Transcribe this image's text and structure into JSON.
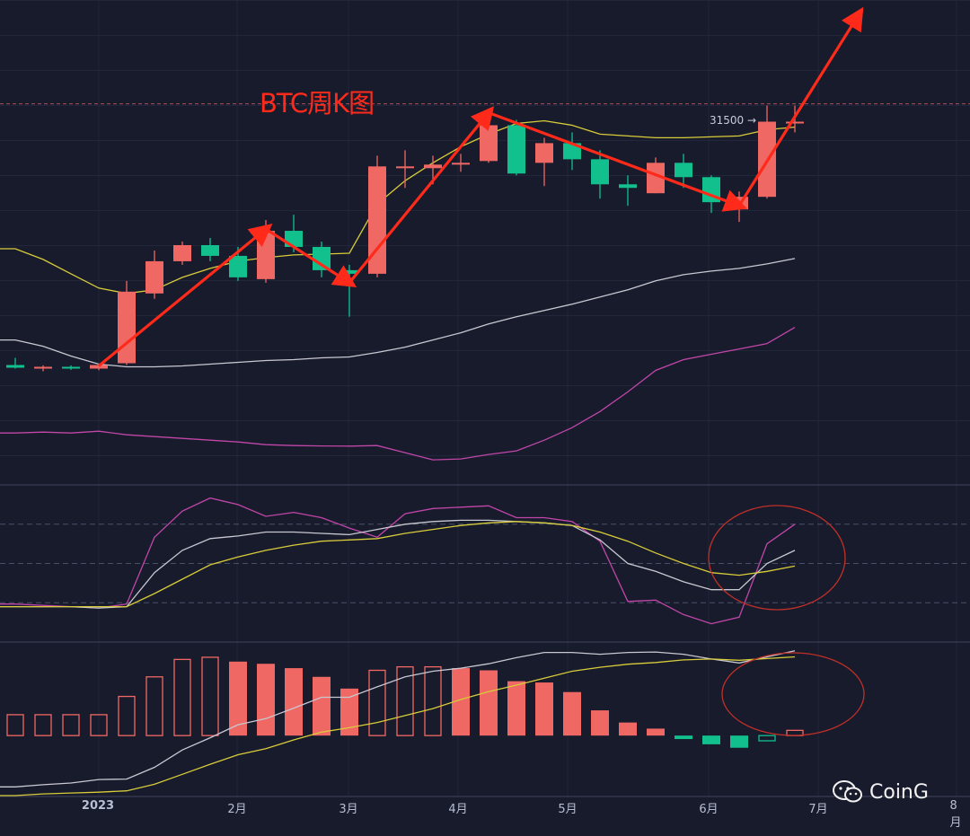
{
  "title": "BTC周K图",
  "watermark": "CoinG",
  "price_label": "31500 →",
  "colors": {
    "up": "#f06864",
    "down": "#12c08e",
    "ma": "#c8c8d2",
    "upper": "#d8cc3a",
    "lower": "#c046a8",
    "arrow": "#ff2a1a",
    "signal": "#d8cc3a",
    "circle": "#c03028"
  },
  "chart_data": [
    {
      "type": "candlestick",
      "title": "BTC周K图",
      "price_line": 31500,
      "x_labels": [
        "2023",
        "2月",
        "3月",
        "4月",
        "5月",
        "6月",
        "7月",
        "8月"
      ],
      "candles": [
        {
          "o": 16900,
          "h": 17300,
          "l": 16700,
          "c": 16750
        },
        {
          "o": 16740,
          "h": 16880,
          "l": 16550,
          "c": 16800
        },
        {
          "o": 16800,
          "h": 16880,
          "l": 16630,
          "c": 16700
        },
        {
          "o": 16700,
          "h": 16980,
          "l": 16610,
          "c": 16900
        },
        {
          "o": 17000,
          "h": 21600,
          "l": 16900,
          "c": 21000
        },
        {
          "o": 20900,
          "h": 23300,
          "l": 20600,
          "c": 22700
        },
        {
          "o": 22700,
          "h": 23800,
          "l": 22500,
          "c": 23600
        },
        {
          "o": 23600,
          "h": 24000,
          "l": 22700,
          "c": 23000
        },
        {
          "o": 23000,
          "h": 23500,
          "l": 21600,
          "c": 21800
        },
        {
          "o": 21700,
          "h": 25000,
          "l": 21500,
          "c": 24400
        },
        {
          "o": 24400,
          "h": 25300,
          "l": 23200,
          "c": 23500
        },
        {
          "o": 23500,
          "h": 23800,
          "l": 21800,
          "c": 22200
        },
        {
          "o": 22200,
          "h": 22500,
          "l": 19600,
          "c": 22000
        },
        {
          "o": 22000,
          "h": 28600,
          "l": 21800,
          "c": 28000
        },
        {
          "o": 28000,
          "h": 28900,
          "l": 26800,
          "c": 28000
        },
        {
          "o": 27900,
          "h": 28600,
          "l": 27000,
          "c": 28100
        },
        {
          "o": 28100,
          "h": 28700,
          "l": 27700,
          "c": 28200
        },
        {
          "o": 28300,
          "h": 30900,
          "l": 28200,
          "c": 30300
        },
        {
          "o": 30300,
          "h": 30600,
          "l": 27500,
          "c": 27600
        },
        {
          "o": 28200,
          "h": 29600,
          "l": 26900,
          "c": 29300
        },
        {
          "o": 29300,
          "h": 29900,
          "l": 27800,
          "c": 28400
        },
        {
          "o": 28400,
          "h": 28900,
          "l": 26200,
          "c": 27000
        },
        {
          "o": 27000,
          "h": 27500,
          "l": 25800,
          "c": 26800
        },
        {
          "o": 26500,
          "h": 28500,
          "l": 26500,
          "c": 28200
        },
        {
          "o": 28200,
          "h": 28700,
          "l": 26800,
          "c": 27400
        },
        {
          "o": 27400,
          "h": 27500,
          "l": 25400,
          "c": 26000
        },
        {
          "o": 25600,
          "h": 26600,
          "l": 24900,
          "c": 26300
        },
        {
          "o": 26300,
          "h": 31400,
          "l": 26200,
          "c": 30500
        },
        {
          "o": 30500,
          "h": 31400,
          "l": 29900,
          "c": 30500
        }
      ],
      "series": [
        {
          "name": "",
          "values": [
            23400,
            22800,
            22000,
            21200,
            20900,
            21100,
            21800,
            22300,
            22700,
            22900,
            23050,
            23100,
            23150,
            25900,
            27200,
            28200,
            29100,
            29800,
            30400,
            30550,
            30300,
            29800,
            29700,
            29600,
            29600,
            29650,
            29700,
            30050,
            30200
          ]
        },
        {
          "name": "",
          "values": [
            18300,
            17950,
            17400,
            16950,
            16800,
            16800,
            16850,
            16950,
            17050,
            17150,
            17200,
            17300,
            17350,
            17600,
            17900,
            18300,
            18700,
            19200,
            19600,
            19950,
            20300,
            20700,
            21100,
            21600,
            21950,
            22150,
            22300,
            22550,
            22850
          ]
        },
        {
          "name": "",
          "values": [
            13100,
            13150,
            13100,
            13200,
            13000,
            12900,
            12800,
            12700,
            12600,
            12450,
            12400,
            12380,
            12370,
            12400,
            12000,
            11600,
            11650,
            11900,
            12100,
            12700,
            13400,
            14300,
            15400,
            16600,
            17200,
            17500,
            17800,
            18100,
            19000
          ]
        }
      ],
      "ylim": [
        10200,
        37300
      ]
    },
    {
      "type": "line",
      "ylim": [
        -10,
        110
      ],
      "levels": [
        80,
        50,
        20
      ],
      "series": [
        {
          "name": "",
          "values": [
            19,
            18,
            17,
            16,
            19,
            70,
            90,
            100,
            95,
            86,
            89,
            85,
            77,
            70,
            88,
            92,
            93,
            94,
            85,
            85,
            82,
            67,
            21,
            22,
            11,
            4,
            9,
            65,
            80
          ]
        },
        {
          "name": "",
          "values": [
            17,
            17,
            17,
            16,
            17,
            43,
            60,
            69,
            71,
            74,
            74,
            73,
            72,
            76,
            80,
            82,
            83,
            83,
            82,
            81,
            79,
            68,
            50,
            44,
            36,
            30,
            30,
            50,
            60
          ]
        },
        {
          "name": "",
          "values": [
            17,
            17,
            17,
            17,
            17,
            27,
            38,
            49,
            55,
            60,
            64,
            67,
            68,
            69,
            73,
            76,
            79,
            81,
            82,
            81,
            79,
            74,
            67,
            58,
            50,
            43,
            41,
            44,
            48
          ]
        }
      ]
    },
    {
      "type": "bar",
      "ylim": [
        -1400,
        2150
      ],
      "values": [
        480,
        480,
        480,
        480,
        900,
        1350,
        1750,
        1800,
        1700,
        1650,
        1550,
        1350,
        1080,
        1500,
        1580,
        1580,
        1550,
        1500,
        1250,
        1220,
        1000,
        580,
        300,
        160,
        -80,
        -200,
        -280,
        -120,
        120
      ],
      "series": [
        {
          "name": "",
          "values": [
            -1180,
            -1130,
            -1090,
            -1010,
            -1000,
            -730,
            -330,
            -50,
            250,
            390,
            630,
            880,
            880,
            1120,
            1350,
            1480,
            1550,
            1650,
            1790,
            1910,
            1910,
            1870,
            1910,
            1920,
            1870,
            1760,
            1670,
            1810,
            1950
          ]
        },
        {
          "name": "",
          "values": [
            -1380,
            -1340,
            -1320,
            -1300,
            -1270,
            -1120,
            -890,
            -660,
            -440,
            -300,
            -100,
            80,
            180,
            300,
            460,
            620,
            830,
            1010,
            1160,
            1320,
            1480,
            1570,
            1640,
            1680,
            1740,
            1760,
            1730,
            1770,
            1810
          ]
        }
      ]
    }
  ]
}
